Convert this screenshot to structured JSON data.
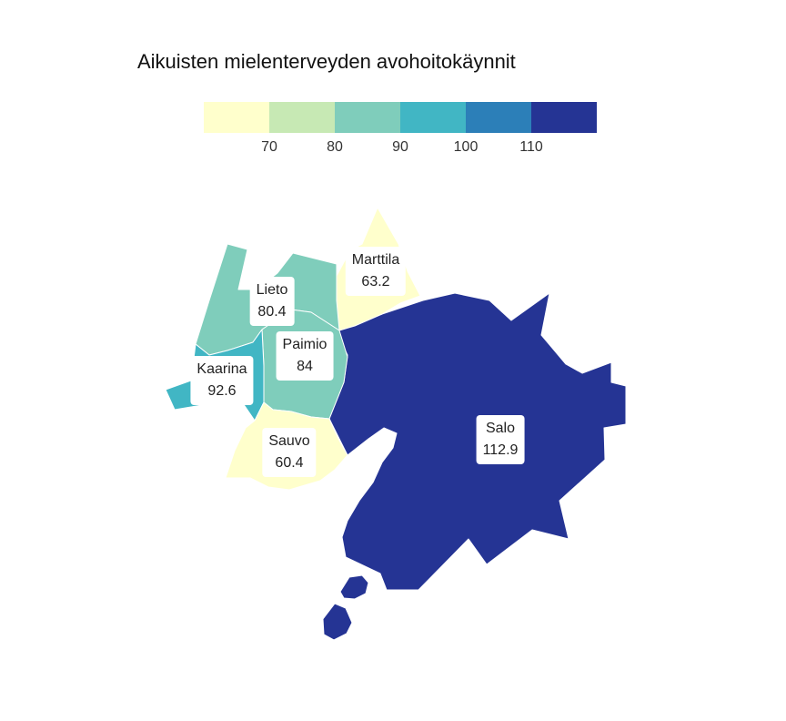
{
  "title": "Aikuisten mielenterveyden avohoitokäynnit",
  "legend": {
    "colors": [
      "#ffffcc",
      "#c7e9b4",
      "#7fcdbb",
      "#41b6c4",
      "#2c7fb8",
      "#253494"
    ],
    "ticks": [
      "70",
      "80",
      "90",
      "100",
      "110"
    ]
  },
  "regions": [
    {
      "name": "Marttila",
      "value": "63.2",
      "color": "#ffffcc"
    },
    {
      "name": "Lieto",
      "value": "80.4",
      "color": "#7fcdbb"
    },
    {
      "name": "Paimio",
      "value": "84",
      "color": "#7fcdbb"
    },
    {
      "name": "Kaarina",
      "value": "92.6",
      "color": "#41b6c4"
    },
    {
      "name": "Sauvo",
      "value": "60.4",
      "color": "#ffffcc"
    },
    {
      "name": "Salo",
      "value": "112.9",
      "color": "#253494"
    }
  ]
}
